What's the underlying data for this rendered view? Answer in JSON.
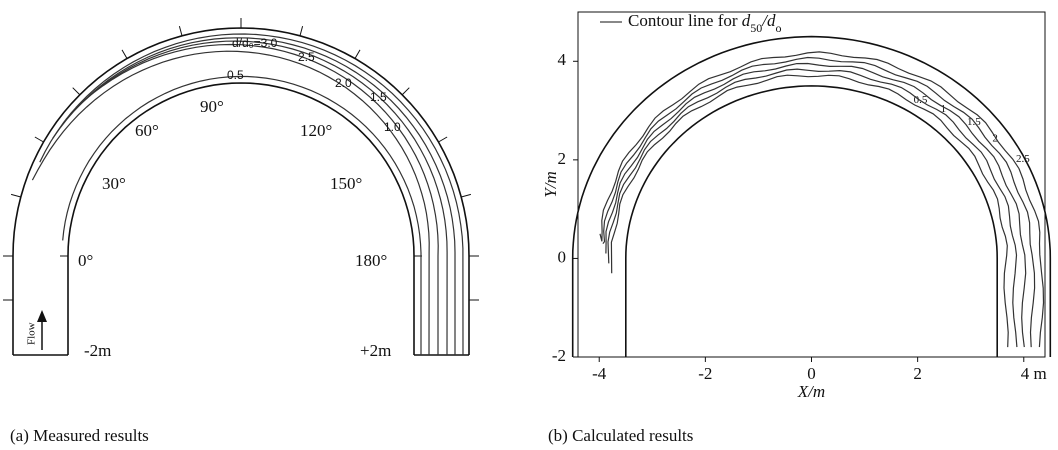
{
  "panel_a": {
    "caption": "(a) Measured results",
    "angle_labels": [
      "0°",
      "30°",
      "60°",
      "90°",
      "120°",
      "150°",
      "180°"
    ],
    "contour_labels": [
      "d/d₀=3.0",
      "2.5",
      "2.0",
      "1.5",
      "1.0",
      "0.5"
    ],
    "end_labels": [
      "-2m",
      "+2m"
    ],
    "flow_label": "Flow"
  },
  "chart_data": {
    "type": "contour",
    "caption": "(b) Calculated results",
    "legend": [
      "Contour line for ",
      "d",
      "50",
      "/d",
      "o"
    ],
    "x_label": "X/m",
    "y_label": "Y/m",
    "xlim": [
      -4.4,
      4.4
    ],
    "ylim": [
      -2,
      5
    ],
    "xticks": [
      -4,
      -2,
      0,
      2,
      {
        "value": 4,
        "label": "4 m"
      }
    ],
    "yticks": [
      -2,
      0,
      2,
      4
    ],
    "levels": [
      0.5,
      1,
      1.5,
      2,
      2.5
    ]
  }
}
